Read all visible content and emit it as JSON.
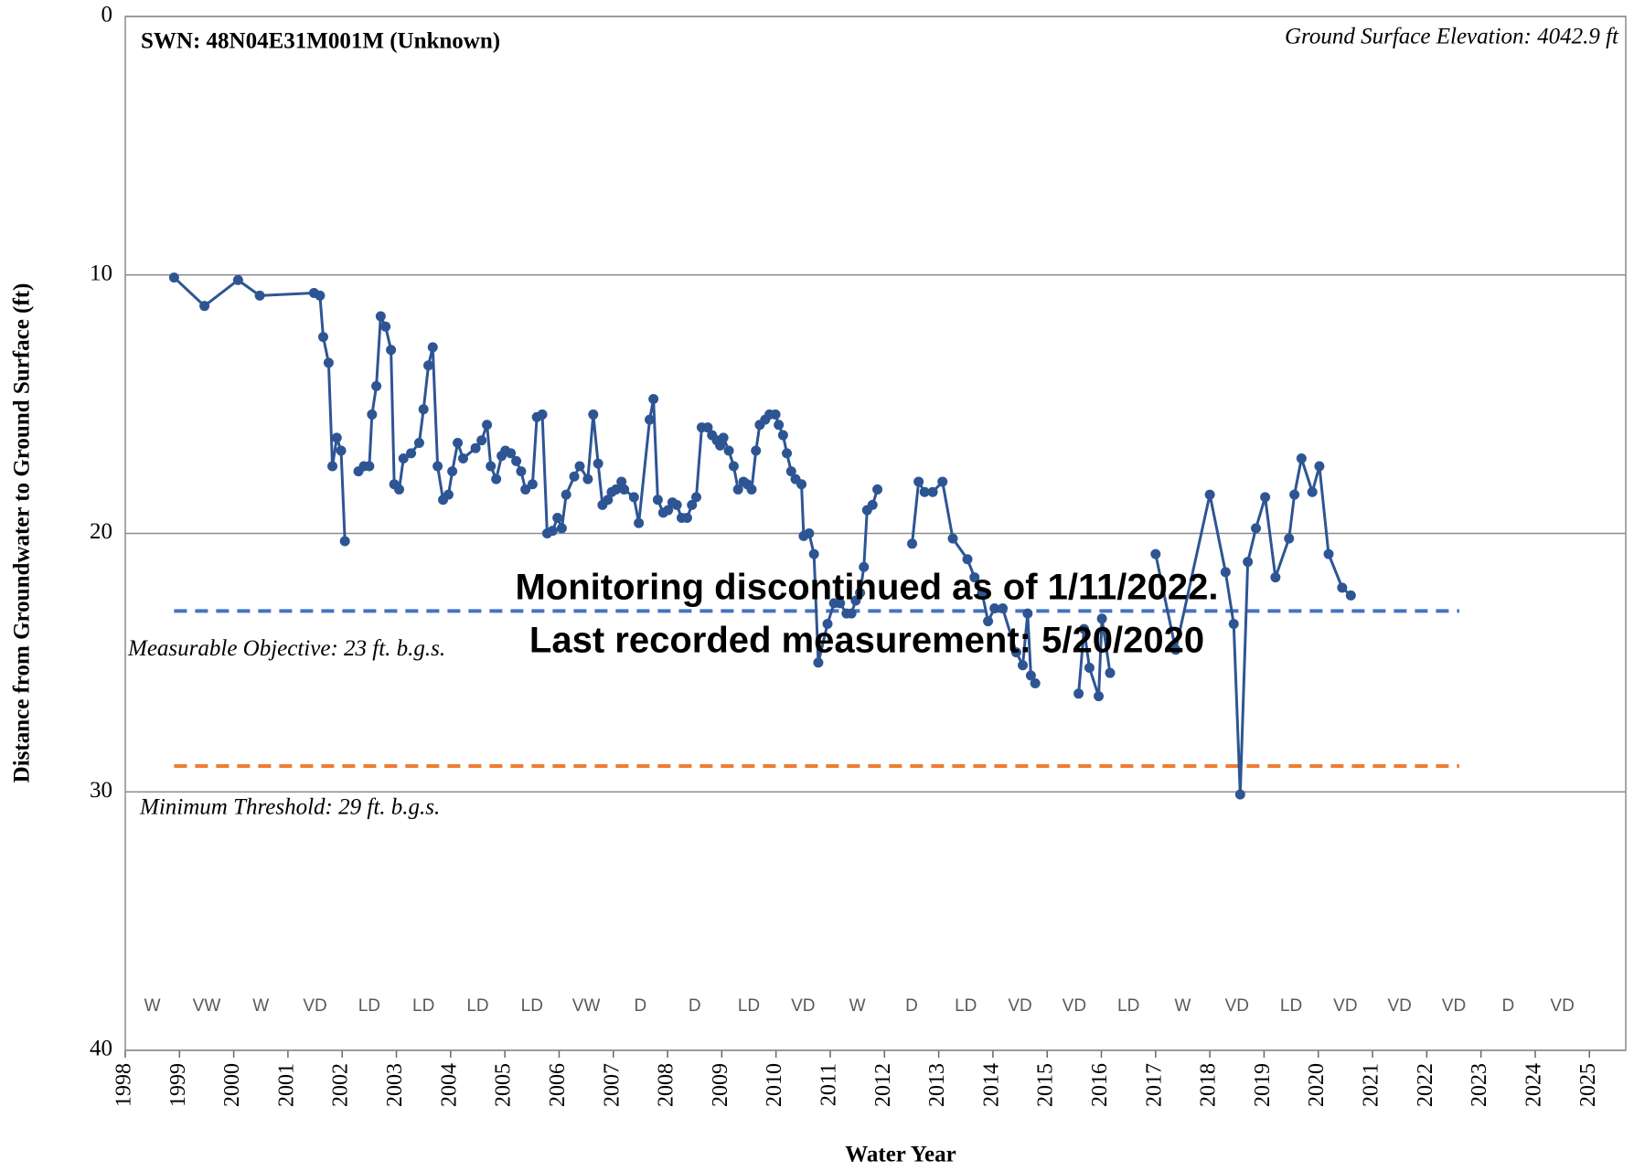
{
  "chart_data": {
    "type": "line",
    "title": "SWN: 48N04E31M001M (Unknown)",
    "subtitle": "Ground Surface Elevation: 4042.9 ft",
    "annotation_lines": [
      "Monitoring discontinued as of 1/11/2022.",
      "Last recorded measurement: 5/20/2020"
    ],
    "x_label": "Water Year",
    "y_label": "Distance from Groundwater to Ground Surface (ft)",
    "xlim": [
      1998,
      2025.67
    ],
    "xticks": [
      1998,
      1999,
      2000,
      2001,
      2002,
      2003,
      2004,
      2005,
      2006,
      2007,
      2008,
      2009,
      2010,
      2011,
      2012,
      2013,
      2014,
      2015,
      2016,
      2017,
      2018,
      2019,
      2020,
      2021,
      2022,
      2023,
      2024,
      2025
    ],
    "ylim": [
      0,
      40
    ],
    "yticks": [
      0,
      10,
      20,
      30,
      40
    ],
    "y_inverted": true,
    "grid": true,
    "series": [
      {
        "color": "#2e5593",
        "x": [
          1998.9,
          1999.46,
          2000.08,
          2000.48,
          2001.48,
          2001.59,
          2001.65,
          2001.75,
          2001.82,
          2001.9,
          2001.98,
          2002.05,
          null,
          2002.3,
          2002.4,
          2002.5,
          2002.55,
          2002.63,
          2002.71,
          2002.8,
          2002.9,
          2002.96,
          2003.05,
          2003.13,
          2003.27,
          2003.42,
          2003.5,
          2003.59,
          2003.67,
          2003.76,
          2003.86,
          2003.96,
          2004.03,
          2004.13,
          2004.23,
          2004.46,
          2004.57,
          2004.67,
          2004.74,
          2004.84,
          2004.94,
          2005.01,
          2005.11,
          2005.21,
          2005.3,
          2005.38,
          2005.51,
          2005.59,
          2005.69,
          2005.78,
          2005.88,
          2005.97,
          2006.05,
          2006.13,
          2006.28,
          2006.38,
          2006.53,
          2006.63,
          2006.72,
          2006.8,
          2006.9,
          2006.97,
          2007.05,
          2007.15,
          2007.2,
          2007.38,
          2007.47,
          2007.67,
          2007.74,
          2007.82,
          2007.92,
          2008.01,
          2008.09,
          2008.17,
          2008.26,
          2008.36,
          2008.45,
          2008.53,
          2008.63,
          2008.74,
          2008.82,
          2008.91,
          2008.97,
          2009.03,
          2009.13,
          2009.22,
          2009.3,
          2009.4,
          2009.47,
          2009.55,
          2009.63,
          2009.7,
          2009.8,
          2009.88,
          2009.99,
          2010.05,
          2010.13,
          2010.2,
          2010.28,
          2010.36,
          2010.47,
          2010.51,
          2010.61,
          2010.7,
          2010.78,
          2010.95,
          2011.07,
          2011.18,
          2011.3,
          2011.39,
          2011.47,
          2011.55,
          2011.62,
          2011.68,
          2011.78,
          2011.87,
          null,
          2012.51,
          2012.63,
          2012.74,
          2012.89,
          2013.07,
          2013.26,
          2013.53,
          2013.66,
          2013.8,
          2013.91,
          2014.03,
          2014.18,
          2014.43,
          2014.55,
          2014.64,
          2014.7,
          2014.78,
          null,
          2015.58,
          2015.68,
          2015.78,
          2015.95,
          2016.01,
          2016.16,
          null,
          2017.0,
          2017.37,
          2018.0,
          2018.29,
          2018.44,
          2018.56,
          2018.7,
          2018.85,
          2019.02,
          2019.21,
          2019.46,
          2019.56,
          2019.69,
          2019.89,
          2020.02,
          2020.19,
          2020.44,
          2020.6
        ],
        "values": [
          10.1,
          11.2,
          10.2,
          10.8,
          10.7,
          10.8,
          12.4,
          13.4,
          17.4,
          16.3,
          16.8,
          20.3,
          null,
          17.6,
          17.4,
          17.4,
          15.4,
          14.3,
          11.6,
          12.0,
          12.9,
          18.1,
          18.3,
          17.1,
          16.9,
          16.5,
          15.2,
          13.5,
          12.8,
          17.4,
          18.7,
          18.5,
          17.6,
          16.5,
          17.1,
          16.7,
          16.4,
          15.8,
          17.4,
          17.9,
          17.0,
          16.8,
          16.9,
          17.2,
          17.6,
          18.3,
          18.1,
          15.5,
          15.4,
          20.0,
          19.9,
          19.4,
          19.8,
          18.5,
          17.8,
          17.4,
          17.9,
          15.4,
          17.3,
          18.9,
          18.7,
          18.4,
          18.3,
          18.0,
          18.3,
          18.6,
          19.6,
          15.6,
          14.8,
          18.7,
          19.2,
          19.1,
          18.8,
          18.9,
          19.4,
          19.4,
          18.9,
          18.6,
          15.9,
          15.9,
          16.2,
          16.4,
          16.6,
          16.3,
          16.8,
          17.4,
          18.3,
          18.0,
          18.1,
          18.3,
          16.8,
          15.8,
          15.6,
          15.4,
          15.4,
          15.8,
          16.2,
          16.9,
          17.6,
          17.9,
          18.1,
          20.1,
          20.0,
          20.8,
          25.0,
          23.5,
          22.7,
          22.7,
          23.1,
          23.1,
          22.6,
          22.3,
          21.3,
          19.1,
          18.9,
          18.3,
          null,
          20.4,
          18.0,
          18.4,
          18.4,
          18.0,
          20.2,
          21.0,
          21.7,
          22.3,
          23.4,
          22.9,
          22.9,
          24.6,
          25.1,
          23.1,
          25.5,
          25.8,
          null,
          26.2,
          23.7,
          25.2,
          26.3,
          23.3,
          25.4,
          null,
          20.8,
          24.5,
          18.5,
          21.5,
          23.5,
          30.1,
          21.1,
          19.8,
          18.6,
          21.7,
          20.2,
          18.5,
          17.1,
          18.4,
          17.4,
          20.8,
          22.1,
          22.4
        ]
      }
    ],
    "thresholds": [
      {
        "label": "Measurable Objective: 23 ft. b.g.s.",
        "value": 23,
        "color": "#4472c4",
        "xrange": [
          1998.9,
          2022.6
        ]
      },
      {
        "label": "Minimum Threshold: 29 ft. b.g.s.",
        "value": 29,
        "color": "#ed7d31",
        "xrange": [
          1998.9,
          2022.6
        ]
      }
    ],
    "year_types": [
      "W",
      "VW",
      "W",
      "VD",
      "LD",
      "LD",
      "LD",
      "LD",
      "VW",
      "D",
      "D",
      "LD",
      "VD",
      "W",
      "D",
      "LD",
      "VD",
      "VD",
      "LD",
      "W",
      "VD",
      "LD",
      "VD",
      "VD",
      "VD",
      "D",
      "VD"
    ]
  }
}
